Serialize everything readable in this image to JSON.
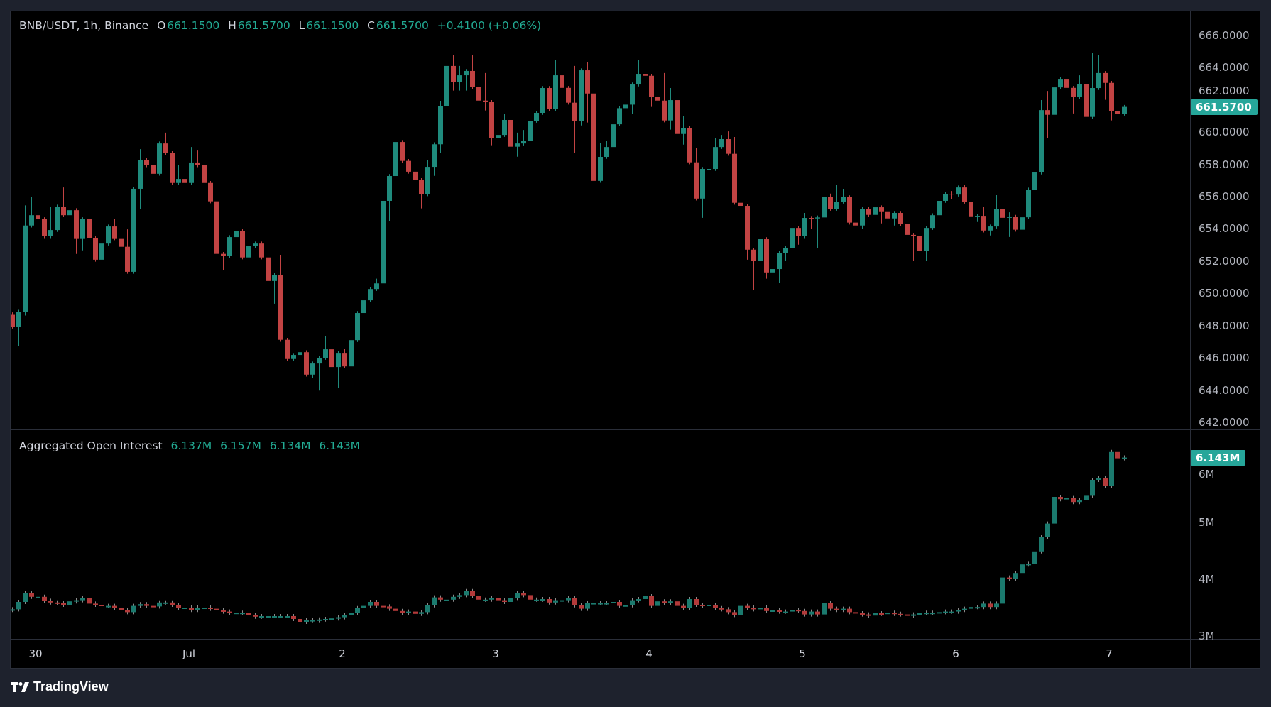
{
  "header": {
    "symbol": "BNB/USDT, 1h, Binance",
    "o_label": "O",
    "o": "661.1500",
    "h_label": "H",
    "h": "661.5700",
    "l_label": "L",
    "l": "661.1500",
    "c_label": "C",
    "c": "661.5700",
    "change": "+0.4100 (+0.06%)"
  },
  "oi_header": {
    "title": "Aggregated Open Interest",
    "v1": "6.137M",
    "v2": "6.157M",
    "v3": "6.134M",
    "v4": "6.143M"
  },
  "price_axis": [
    "666.0000",
    "664.0000",
    "662.0000",
    "660.0000",
    "658.0000",
    "656.0000",
    "654.0000",
    "652.0000",
    "650.0000",
    "648.0000",
    "646.0000",
    "644.0000",
    "642.0000"
  ],
  "price_axis_values": [
    666,
    664,
    662,
    660,
    658,
    656,
    654,
    652,
    650,
    648,
    646,
    644,
    642
  ],
  "price_badge": "661.5700",
  "price_badge_value": 661.57,
  "oi_axis": [
    "6M",
    "5M",
    "4M",
    "3M"
  ],
  "oi_axis_values": [
    6,
    5,
    4,
    3
  ],
  "oi_badge": "6.143M",
  "oi_badge_value": 6.143,
  "time_axis": [
    "30",
    "Jul",
    "2",
    "3",
    "4",
    "5",
    "6",
    "7"
  ],
  "footer": {
    "brand": "TradingView"
  },
  "colors": {
    "up": "#1f8b7d",
    "down": "#c24343",
    "badge": "#26a69a",
    "oi_up": "#1b7a6e",
    "oi_down": "#b33a3a",
    "oi_wick": "#8a8a8a"
  },
  "chart_data": {
    "type": "candlestick",
    "interval": "1h",
    "price": {
      "first_open": 648.67,
      "ylim": [
        642,
        666.6
      ],
      "closes": [
        647.94,
        648.86,
        654.21,
        654.85,
        654.6,
        653.55,
        653.93,
        655.38,
        654.85,
        655.16,
        653.42,
        654.6,
        653.45,
        652.09,
        653.09,
        654.15,
        653.42,
        652.89,
        651.34,
        656.49,
        658.29,
        657.95,
        657.42,
        659.3,
        658.7,
        656.85,
        657.1,
        656.85,
        658.12,
        657.95,
        656.85,
        655.71,
        652.45,
        652.31,
        653.49,
        653.89,
        652.23,
        652.92,
        653.09,
        652.23,
        650.77,
        651.15,
        647.12,
        645.93,
        646.18,
        646.35,
        644.96,
        645.65,
        646.0,
        646.53,
        645.43,
        646.31,
        645.47,
        647.1,
        648.78,
        649.57,
        650.27,
        650.62,
        655.74,
        657.28,
        659.39,
        658.22,
        657.55,
        657.03,
        656.15,
        657.85,
        659.25,
        661.6,
        664.11,
        663.11,
        663.53,
        663.8,
        662.8,
        661.96,
        661.87,
        659.63,
        659.83,
        660.76,
        659.1,
        659.3,
        659.44,
        660.71,
        661.2,
        662.74,
        661.43,
        663.53,
        662.75,
        661.83,
        660.69,
        663.84,
        662.4,
        656.98,
        658.47,
        659.08,
        660.49,
        661.49,
        661.71,
        662.96,
        663.62,
        663.5,
        662.21,
        661.96,
        660.73,
        661.99,
        659.89,
        660.27,
        658.13,
        655.88,
        657.72,
        657.72,
        659.08,
        659.57,
        658.66,
        655.62,
        655.43,
        652.71,
        652.01,
        653.36,
        651.3,
        651.51,
        652.52,
        652.83,
        654.06,
        653.55,
        654.68,
        654.65,
        654.71,
        655.96,
        655.25,
        655.69,
        655.96,
        654.39,
        654.21,
        655.25,
        654.87,
        655.34,
        655.09,
        654.65,
        654.99,
        654.3,
        653.63,
        653.55,
        652.62,
        654.06,
        654.85,
        655.74,
        656.18,
        656.13,
        656.57,
        655.69,
        654.78,
        654.81,
        653.9,
        654.15,
        655.25,
        654.69,
        654.75,
        653.95,
        654.72,
        656.44,
        657.5,
        661.37,
        661.08,
        662.78,
        663.31,
        662.75,
        662.18,
        663.0,
        660.95,
        662.74,
        663.67,
        663.06,
        661.3,
        661.15,
        661.57
      ],
      "highs": {
        "1": 648.82,
        "3": 655.46,
        "4": 655.97,
        "5": 657.12,
        "7": 655.35,
        "9": 656.57,
        "10": 656.16,
        "13": 655.16,
        "17": 654.63,
        "18": 655.16,
        "19": 653.97,
        "21": 658.95,
        "23": 658.73,
        "25": 659.97,
        "27": 657.94,
        "28": 657.67,
        "29": 659.08,
        "30": 658.86,
        "31": 658.82,
        "36": 654.41,
        "43": 652.39,
        "50": 647.35,
        "51": 647.15,
        "53": 646.57,
        "54": 647.76,
        "58": 650.91,
        "61": 659.83,
        "64": 658.07,
        "66": 658.25,
        "68": 661.95,
        "69": 664.59,
        "70": 664.77,
        "71": 664.11,
        "73": 664.81,
        "75": 663.67,
        "77": 660.67,
        "78": 661.11,
        "80": 659.97,
        "81": 660.14,
        "82": 662.52,
        "86": 664.46,
        "89": 664.11,
        "91": 664.37,
        "93": 659.35,
        "94": 659.44,
        "97": 662.48,
        "99": 664.5,
        "100": 664.19,
        "102": 663.49,
        "103": 663.67,
        "104": 662.74,
        "106": 660.98,
        "108": 659.0,
        "110": 658.51,
        "111": 659.66,
        "112": 659.83,
        "113": 660.05,
        "114": 659.7,
        "115": 655.96,
        "120": 652.48,
        "125": 654.99,
        "128": 656.09,
        "129": 656.19,
        "130": 656.71,
        "131": 656.49,
        "133": 655.43,
        "136": 655.87,
        "138": 655.52,
        "148": 656.35,
        "150": 656.75,
        "153": 655.38,
        "155": 656.09,
        "156": 655.38,
        "157": 655.03,
        "159": 654.94,
        "162": 661.99,
        "163": 662.56,
        "164": 663.45,
        "166": 663.67,
        "168": 663.53,
        "169": 663.53,
        "170": 664.94,
        "171": 664.77,
        "174": 661.6
      },
      "lows": {
        "2": 646.72,
        "3": 648.63,
        "11": 652.45,
        "12": 652.67,
        "15": 651.61,
        "21": 655.21,
        "23": 656.5,
        "34": 651.46,
        "42": 649.36,
        "48": 644.74,
        "49": 643.97,
        "52": 644.12,
        "54": 643.72,
        "56": 648.31,
        "60": 654.47,
        "65": 655.27,
        "67": 657.29,
        "68": 658.73,
        "70": 662.58,
        "71": 662.58,
        "72": 662.58,
        "75": 661.35,
        "76": 659.19,
        "77": 658.04,
        "79": 658.31,
        "80": 658.48,
        "89": 658.7,
        "90": 660.42,
        "91": 660.6,
        "92": 656.68,
        "95": 658.66,
        "98": 661.13,
        "100": 662.45,
        "101": 661.57,
        "104": 660.16,
        "106": 659.23,
        "109": 654.69,
        "110": 657.29,
        "115": 652.98,
        "116": 652.09,
        "117": 650.2,
        "119": 650.91,
        "120": 650.73,
        "121": 650.64,
        "122": 652.01,
        "123": 652.45,
        "124": 653.02,
        "126": 653.99,
        "127": 652.8,
        "133": 653.86,
        "134": 653.99,
        "137": 654.34,
        "139": 654.21,
        "141": 652.62,
        "142": 652.01,
        "144": 652.01,
        "148": 655.83,
        "152": 654.43,
        "154": 653.59,
        "157": 653.5,
        "161": 655.49,
        "163": 659.63,
        "167": 661.16,
        "172": 662.01,
        "173": 660.73,
        "174": 660.38
      }
    },
    "open_interest": {
      "unit": "M",
      "ylim": [
        3,
        6.7
      ],
      "first_open": 3.46,
      "closes": [
        3.47,
        3.6,
        3.75,
        3.69,
        3.69,
        3.62,
        3.59,
        3.58,
        3.55,
        3.61,
        3.63,
        3.67,
        3.57,
        3.55,
        3.53,
        3.53,
        3.5,
        3.45,
        3.42,
        3.53,
        3.56,
        3.53,
        3.52,
        3.59,
        3.59,
        3.55,
        3.5,
        3.5,
        3.46,
        3.5,
        3.5,
        3.48,
        3.45,
        3.43,
        3.41,
        3.41,
        3.41,
        3.37,
        3.34,
        3.35,
        3.35,
        3.35,
        3.35,
        3.35,
        3.3,
        3.25,
        3.28,
        3.28,
        3.29,
        3.3,
        3.31,
        3.33,
        3.37,
        3.41,
        3.49,
        3.53,
        3.6,
        3.53,
        3.52,
        3.48,
        3.44,
        3.41,
        3.43,
        3.39,
        3.42,
        3.54,
        3.68,
        3.64,
        3.64,
        3.69,
        3.72,
        3.79,
        3.71,
        3.64,
        3.64,
        3.67,
        3.63,
        3.6,
        3.67,
        3.75,
        3.72,
        3.64,
        3.64,
        3.65,
        3.59,
        3.63,
        3.63,
        3.67,
        3.54,
        3.48,
        3.58,
        3.58,
        3.58,
        3.58,
        3.6,
        3.53,
        3.54,
        3.63,
        3.65,
        3.7,
        3.53,
        3.61,
        3.58,
        3.61,
        3.53,
        3.5,
        3.65,
        3.55,
        3.53,
        3.55,
        3.49,
        3.47,
        3.42,
        3.37,
        3.53,
        3.5,
        3.47,
        3.5,
        3.44,
        3.45,
        3.43,
        3.43,
        3.46,
        3.44,
        3.38,
        3.43,
        3.38,
        3.58,
        3.48,
        3.46,
        3.48,
        3.42,
        3.4,
        3.38,
        3.36,
        3.4,
        3.39,
        3.41,
        3.39,
        3.38,
        3.36,
        3.38,
        3.4,
        3.41,
        3.41,
        3.42,
        3.43,
        3.43,
        3.46,
        3.48,
        3.51,
        3.51,
        3.57,
        3.51,
        3.57,
        4.03,
        4.0,
        4.11,
        4.26,
        4.27,
        4.49,
        4.75,
        4.98,
        5.45,
        5.41,
        5.43,
        5.36,
        5.39,
        5.47,
        5.75,
        5.78,
        5.64,
        6.24,
        6.13,
        6.143
      ]
    }
  }
}
